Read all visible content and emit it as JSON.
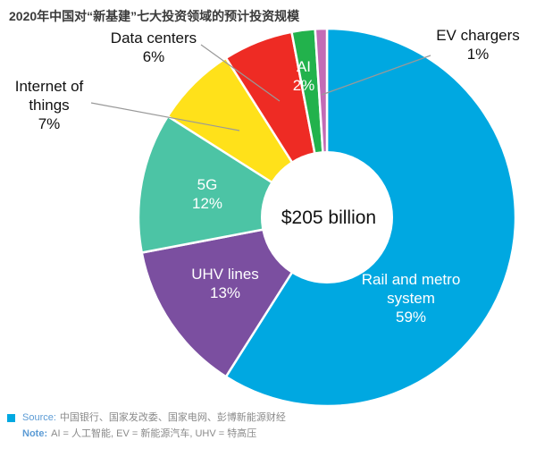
{
  "title": "2020年中国对“新基建”七大投资领域的预计投资规模",
  "chart_data": {
    "type": "pie",
    "style": "donut",
    "center_label": "$205 billion",
    "slices": [
      {
        "label": "Rail and metro system",
        "percent": 59,
        "display": "59%",
        "color": "#00a8e1"
      },
      {
        "label": "UHV lines",
        "percent": 13,
        "display": "13%",
        "color": "#7b4fa0"
      },
      {
        "label": "5G",
        "percent": 12,
        "display": "12%",
        "color": "#4cc4a5"
      },
      {
        "label": "Internet of things",
        "percent": 7,
        "display": "7%",
        "color": "#ffe11a"
      },
      {
        "label": "Data centers",
        "percent": 6,
        "display": "6%",
        "color": "#ee2b24"
      },
      {
        "label": "AI",
        "percent": 2,
        "display": "2%",
        "color": "#22b24c"
      },
      {
        "label": "EV chargers",
        "percent": 1,
        "display": "1%",
        "color": "#c36bb5"
      }
    ]
  },
  "footer": {
    "source_label": "Source:",
    "source_text": "中国银行、国家发改委、国家电网、彭博新能源财经",
    "note_label": "Note:",
    "note_text": "AI = 人工智能, EV = 新能源汽车, UHV = 特高压"
  }
}
